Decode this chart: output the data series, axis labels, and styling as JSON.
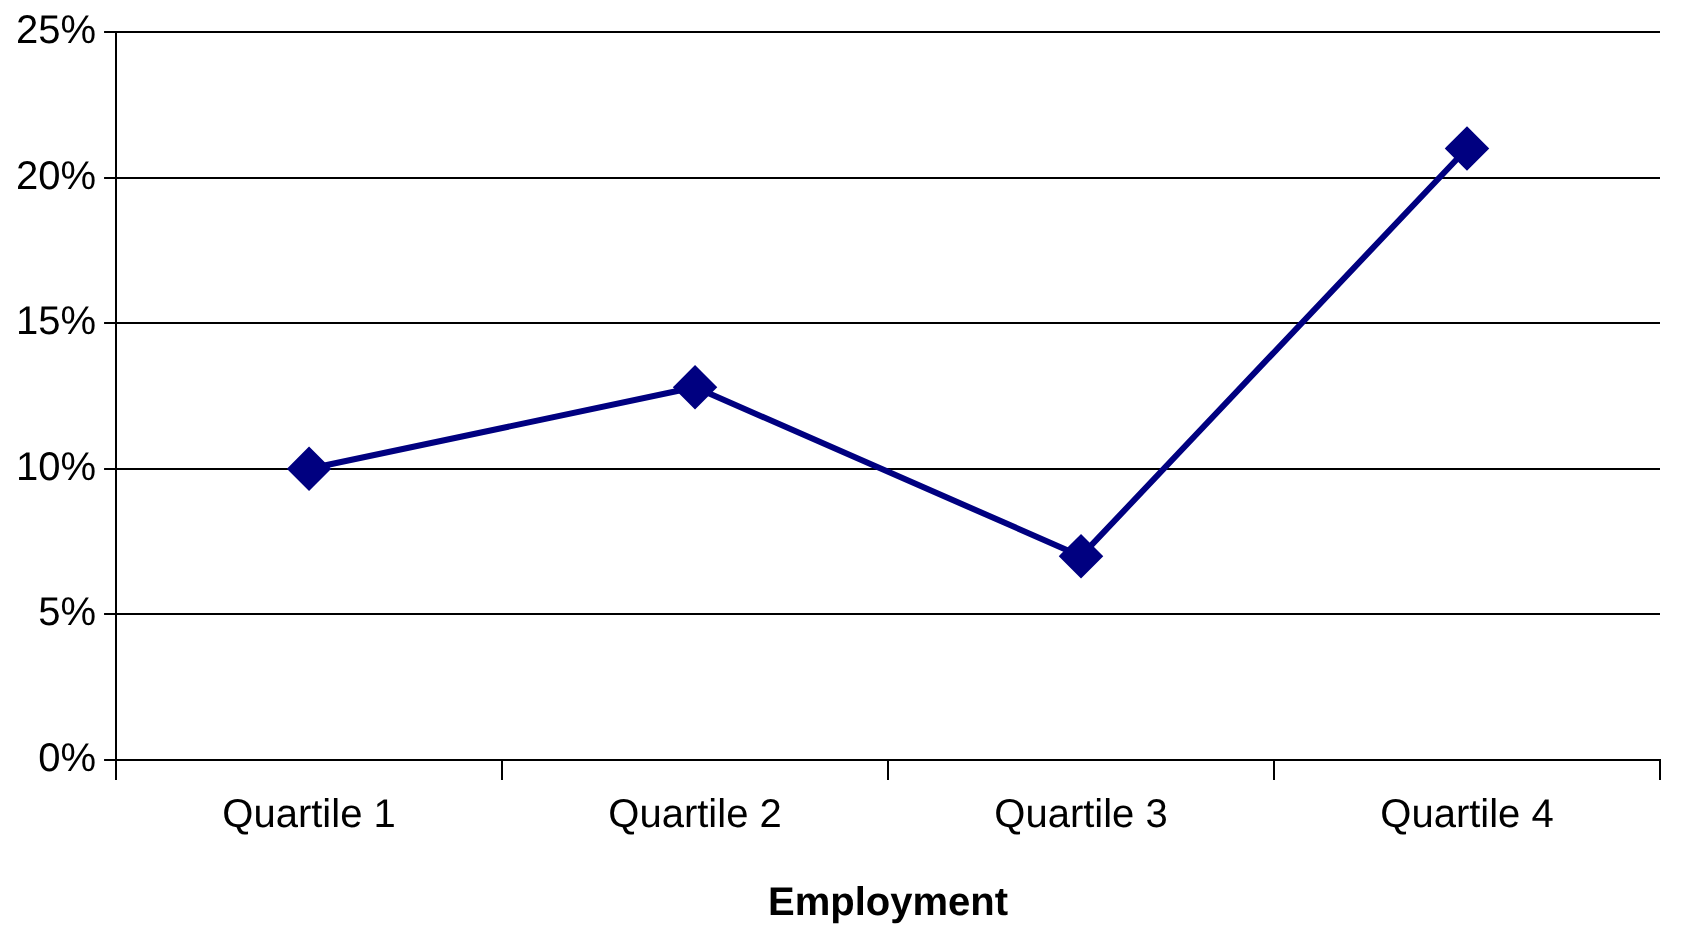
{
  "chart_data": {
    "type": "line",
    "xlabel": "Employment",
    "categories": [
      "Quartile 1",
      "Quartile 2",
      "Quartile 3",
      "Quartile 4"
    ],
    "series": [
      {
        "color": "#000080",
        "values": [
          10,
          12.8,
          7,
          21
        ]
      }
    ],
    "ylim": [
      0,
      25
    ],
    "yticks": [
      {
        "value": 0,
        "label": "0%"
      },
      {
        "value": 5,
        "label": "5%"
      },
      {
        "value": 10,
        "label": "10%"
      },
      {
        "value": 15,
        "label": "15%"
      },
      {
        "value": 20,
        "label": "20%"
      },
      {
        "value": 25,
        "label": "25%"
      }
    ],
    "grid": "y",
    "legend": false,
    "marker": "diamond",
    "line_style": "solid"
  }
}
